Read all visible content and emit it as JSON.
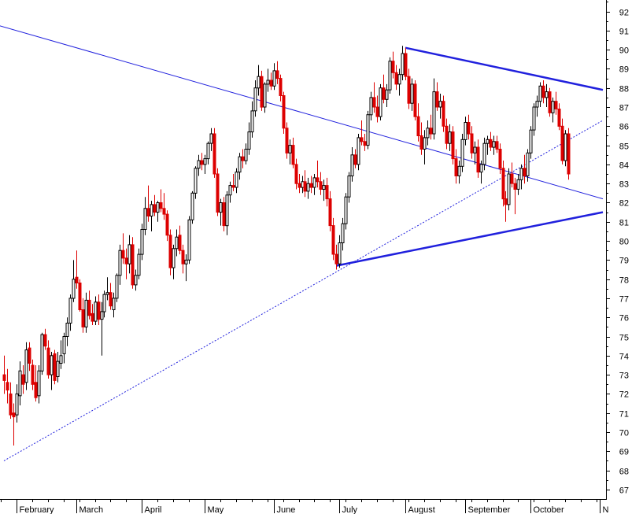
{
  "chart_data": {
    "type": "candlestick",
    "title": "",
    "xlabel": "",
    "ylabel": "",
    "ylim": [
      66.5,
      92.6
    ],
    "y_ticks": [
      67,
      68,
      69,
      70,
      71,
      72,
      73,
      74,
      75,
      76,
      77,
      78,
      79,
      80,
      81,
      82,
      83,
      84,
      85,
      86,
      87,
      88,
      89,
      90,
      91,
      92
    ],
    "y_axis_side": "right",
    "grid": false,
    "legend": "none",
    "x_months": [
      {
        "label": "February",
        "day": 5
      },
      {
        "label": "March",
        "day": 24
      },
      {
        "label": "April",
        "day": 45
      },
      {
        "label": "May",
        "day": 65
      },
      {
        "label": "June",
        "day": 87
      },
      {
        "label": "July",
        "day": 108
      },
      {
        "label": "August",
        "day": 129
      },
      {
        "label": "September",
        "day": 148
      },
      {
        "label": "October",
        "day": 169
      },
      {
        "label": "N",
        "day": 191
      }
    ],
    "x_range_days": [
      0,
      192
    ],
    "candles": [
      [
        1,
        73.0,
        74.0,
        72.0,
        72.7
      ],
      [
        2,
        72.6,
        73.3,
        71.5,
        72.2
      ],
      [
        3,
        72.0,
        72.6,
        70.7,
        70.9
      ],
      [
        4,
        71.0,
        71.5,
        69.3,
        70.8
      ],
      [
        5,
        70.9,
        72.5,
        70.5,
        72.0
      ],
      [
        6,
        71.9,
        73.7,
        71.4,
        73.2
      ],
      [
        7,
        73.0,
        73.5,
        72.0,
        72.5
      ],
      [
        8,
        72.6,
        74.7,
        72.2,
        74.3
      ],
      [
        9,
        74.4,
        74.7,
        73.2,
        73.6
      ],
      [
        10,
        73.5,
        73.8,
        72.2,
        72.5
      ],
      [
        11,
        72.6,
        73.5,
        71.6,
        71.8
      ],
      [
        12,
        71.9,
        73.5,
        71.5,
        73.2
      ],
      [
        13,
        73.2,
        75.2,
        73.0,
        75.1
      ],
      [
        14,
        75.1,
        75.4,
        74.3,
        74.5
      ],
      [
        15,
        74.4,
        74.8,
        72.8,
        73.0
      ],
      [
        16,
        73.0,
        74.2,
        72.2,
        74.0
      ],
      [
        17,
        74.1,
        74.3,
        72.5,
        72.7
      ],
      [
        18,
        72.9,
        74.2,
        72.6,
        73.7
      ],
      [
        19,
        73.6,
        74.8,
        73.3,
        74.0
      ],
      [
        20,
        74.1,
        75.2,
        73.6,
        75.0
      ],
      [
        21,
        75.0,
        76.0,
        74.5,
        75.7
      ],
      [
        22,
        75.7,
        77.2,
        75.3,
        77.0
      ],
      [
        23,
        77.0,
        79.0,
        76.8,
        78.0
      ],
      [
        24,
        78.1,
        79.5,
        77.5,
        77.8
      ],
      [
        25,
        77.8,
        78.0,
        76.3,
        76.4
      ],
      [
        26,
        76.4,
        77.0,
        75.2,
        75.5
      ],
      [
        27,
        75.5,
        77.3,
        75.2,
        76.9
      ],
      [
        28,
        76.9,
        77.4,
        75.9,
        76.1
      ],
      [
        29,
        76.2,
        76.7,
        75.6,
        75.8
      ],
      [
        30,
        75.8,
        77.1,
        75.6,
        76.8
      ],
      [
        31,
        76.8,
        77.2,
        75.6,
        75.9
      ],
      [
        32,
        75.9,
        76.8,
        74.0,
        76.3
      ],
      [
        33,
        76.3,
        77.4,
        76.0,
        77.2
      ],
      [
        34,
        77.2,
        78.1,
        76.9,
        77.3
      ],
      [
        35,
        77.3,
        77.8,
        76.4,
        76.6
      ],
      [
        36,
        76.4,
        77.3,
        76.0,
        77.0
      ],
      [
        37,
        77.0,
        78.3,
        76.8,
        78.2
      ],
      [
        38,
        78.2,
        79.8,
        77.7,
        79.5
      ],
      [
        39,
        79.5,
        80.4,
        78.8,
        79.1
      ],
      [
        40,
        79.1,
        79.6,
        78.0,
        78.8
      ],
      [
        41,
        78.8,
        80.3,
        78.3,
        79.8
      ],
      [
        42,
        79.8,
        80.2,
        77.5,
        77.7
      ],
      [
        43,
        77.7,
        78.5,
        77.4,
        78.2
      ],
      [
        44,
        78.2,
        79.6,
        78.0,
        79.3
      ],
      [
        45,
        79.3,
        80.9,
        79.0,
        80.6
      ],
      [
        46,
        80.6,
        82.3,
        80.3,
        81.7
      ],
      [
        47,
        81.7,
        82.9,
        81.0,
        81.3
      ],
      [
        48,
        81.3,
        82.1,
        80.5,
        81.9
      ],
      [
        49,
        81.9,
        82.4,
        81.3,
        81.5
      ],
      [
        50,
        81.5,
        82.1,
        81.0,
        82.0
      ],
      [
        51,
        82.0,
        82.7,
        81.5,
        81.7
      ],
      [
        52,
        81.7,
        82.5,
        81.1,
        81.4
      ],
      [
        53,
        81.4,
        81.6,
        80.0,
        80.3
      ],
      [
        54,
        80.3,
        80.6,
        78.2,
        78.6
      ],
      [
        55,
        78.6,
        79.8,
        78.0,
        79.6
      ],
      [
        56,
        79.6,
        80.6,
        79.2,
        80.2
      ],
      [
        57,
        80.3,
        80.8,
        79.3,
        79.5
      ],
      [
        58,
        79.5,
        79.8,
        78.3,
        78.8
      ],
      [
        59,
        78.8,
        79.3,
        77.9,
        79.0
      ],
      [
        60,
        79.0,
        81.3,
        78.8,
        81.1
      ],
      [
        61,
        81.1,
        82.6,
        80.9,
        82.5
      ],
      [
        62,
        82.5,
        83.9,
        82.2,
        83.8
      ],
      [
        63,
        83.8,
        84.5,
        83.4,
        84.2
      ],
      [
        64,
        84.2,
        84.6,
        83.7,
        84.0
      ],
      [
        65,
        84.0,
        84.5,
        83.5,
        84.3
      ],
      [
        66,
        84.3,
        85.2,
        84.0,
        85.1
      ],
      [
        67,
        85.1,
        85.9,
        84.7,
        85.6
      ],
      [
        68,
        85.6,
        85.9,
        83.3,
        83.5
      ],
      [
        69,
        83.5,
        83.8,
        81.3,
        81.5
      ],
      [
        70,
        81.5,
        82.2,
        80.8,
        82.0
      ],
      [
        71,
        82.0,
        82.3,
        80.5,
        80.8
      ],
      [
        72,
        80.8,
        82.6,
        80.3,
        82.4
      ],
      [
        73,
        82.4,
        83.1,
        82.0,
        82.9
      ],
      [
        74,
        82.9,
        83.5,
        82.6,
        82.8
      ],
      [
        75,
        82.8,
        83.8,
        82.5,
        83.6
      ],
      [
        76,
        83.6,
        84.6,
        83.2,
        84.4
      ],
      [
        77,
        84.4,
        84.8,
        83.8,
        84.2
      ],
      [
        78,
        84.2,
        85.1,
        84.0,
        84.8
      ],
      [
        79,
        84.8,
        86.2,
        84.5,
        85.7
      ],
      [
        80,
        85.7,
        87.3,
        85.4,
        86.8
      ],
      [
        81,
        86.8,
        88.4,
        86.5,
        88.0
      ],
      [
        82,
        88.0,
        89.2,
        87.6,
        88.6
      ],
      [
        83,
        88.6,
        88.9,
        86.8,
        87.0
      ],
      [
        84,
        87.0,
        88.3,
        86.7,
        88.2
      ],
      [
        85,
        88.2,
        89.0,
        87.8,
        88.4
      ],
      [
        86,
        88.4,
        88.8,
        87.9,
        88.1
      ],
      [
        87,
        88.1,
        89.3,
        87.9,
        88.9
      ],
      [
        88,
        88.9,
        89.4,
        88.2,
        88.5
      ],
      [
        89,
        88.5,
        88.7,
        87.3,
        87.6
      ],
      [
        90,
        87.6,
        87.8,
        85.6,
        85.9
      ],
      [
        91,
        85.9,
        86.2,
        84.3,
        84.6
      ],
      [
        92,
        84.6,
        85.3,
        84.0,
        85.0
      ],
      [
        93,
        85.0,
        85.4,
        83.8,
        84.0
      ],
      [
        94,
        84.0,
        84.3,
        82.7,
        83.0
      ],
      [
        95,
        83.0,
        83.5,
        82.5,
        82.8
      ],
      [
        96,
        82.8,
        83.4,
        82.5,
        83.1
      ],
      [
        97,
        83.1,
        83.7,
        82.3,
        82.6
      ],
      [
        98,
        82.6,
        83.3,
        82.2,
        83.0
      ],
      [
        99,
        83.0,
        83.4,
        82.5,
        82.8
      ],
      [
        100,
        82.8,
        83.5,
        82.4,
        83.3
      ],
      [
        101,
        83.3,
        84.2,
        82.8,
        83.1
      ],
      [
        102,
        83.1,
        83.6,
        82.4,
        82.7
      ],
      [
        103,
        82.7,
        83.2,
        82.1,
        82.9
      ],
      [
        104,
        82.9,
        83.3,
        81.8,
        82.2
      ],
      [
        105,
        82.2,
        82.6,
        80.5,
        80.8
      ],
      [
        106,
        80.8,
        81.2,
        79.0,
        79.3
      ],
      [
        107,
        79.3,
        79.8,
        78.5,
        78.8
      ],
      [
        108,
        78.8,
        80.3,
        78.6,
        79.9
      ],
      [
        109,
        79.9,
        81.2,
        79.5,
        80.9
      ],
      [
        110,
        80.9,
        82.5,
        80.6,
        82.3
      ],
      [
        111,
        82.3,
        83.6,
        82.0,
        83.4
      ],
      [
        112,
        83.4,
        84.9,
        83.1,
        84.5
      ],
      [
        113,
        84.5,
        84.8,
        83.8,
        84.0
      ],
      [
        114,
        84.0,
        85.6,
        83.7,
        85.4
      ],
      [
        115,
        85.4,
        86.3,
        85.0,
        85.2
      ],
      [
        116,
        85.2,
        85.6,
        84.7,
        85.0
      ],
      [
        117,
        85.0,
        86.8,
        84.8,
        86.6
      ],
      [
        118,
        86.6,
        87.8,
        86.3,
        87.5
      ],
      [
        119,
        87.5,
        88.3,
        86.7,
        87.0
      ],
      [
        120,
        87.0,
        87.6,
        86.2,
        86.5
      ],
      [
        121,
        86.5,
        88.2,
        86.3,
        88.0
      ],
      [
        122,
        88.0,
        88.7,
        87.2,
        87.4
      ],
      [
        123,
        87.4,
        88.2,
        87.0,
        87.9
      ],
      [
        124,
        87.9,
        89.6,
        87.7,
        89.4
      ],
      [
        125,
        89.4,
        89.9,
        88.5,
        88.8
      ],
      [
        126,
        88.8,
        89.2,
        87.9,
        88.2
      ],
      [
        127,
        88.2,
        89.0,
        87.6,
        88.7
      ],
      [
        128,
        88.7,
        90.2,
        88.4,
        89.8
      ],
      [
        129,
        89.8,
        90.1,
        88.4,
        88.6
      ],
      [
        130,
        88.6,
        89.0,
        86.9,
        87.2
      ],
      [
        131,
        87.2,
        88.5,
        86.8,
        88.2
      ],
      [
        132,
        88.2,
        88.4,
        86.3,
        86.5
      ],
      [
        133,
        86.5,
        87.2,
        85.2,
        85.5
      ],
      [
        134,
        85.5,
        86.2,
        84.5,
        84.8
      ],
      [
        135,
        84.8,
        85.8,
        84.0,
        85.4
      ],
      [
        136,
        85.4,
        86.3,
        85.0,
        85.9
      ],
      [
        137,
        85.9,
        86.6,
        85.3,
        85.6
      ],
      [
        138,
        85.6,
        88.5,
        85.3,
        87.8
      ],
      [
        139,
        87.8,
        88.3,
        86.8,
        87.0
      ],
      [
        140,
        87.0,
        87.7,
        86.4,
        87.3
      ],
      [
        141,
        87.3,
        87.6,
        85.7,
        86.0
      ],
      [
        142,
        86.0,
        86.4,
        84.8,
        85.1
      ],
      [
        143,
        85.1,
        86.1,
        84.7,
        85.7
      ],
      [
        144,
        85.7,
        86.0,
        84.0,
        84.3
      ],
      [
        145,
        84.3,
        84.8,
        83.0,
        83.4
      ],
      [
        146,
        83.4,
        84.2,
        83.0,
        83.9
      ],
      [
        147,
        83.9,
        85.6,
        83.6,
        85.3
      ],
      [
        148,
        85.3,
        86.5,
        85.0,
        86.2
      ],
      [
        149,
        86.2,
        86.6,
        85.3,
        85.6
      ],
      [
        150,
        85.6,
        86.0,
        84.3,
        84.6
      ],
      [
        151,
        84.6,
        85.2,
        84.0,
        84.9
      ],
      [
        152,
        84.9,
        85.3,
        83.3,
        83.6
      ],
      [
        153,
        83.6,
        84.2,
        83.0,
        84.0
      ],
      [
        154,
        84.0,
        85.4,
        83.7,
        85.1
      ],
      [
        155,
        85.1,
        85.5,
        84.5,
        85.3
      ],
      [
        156,
        85.3,
        85.7,
        84.7,
        84.9
      ],
      [
        157,
        84.9,
        85.5,
        84.5,
        85.2
      ],
      [
        158,
        85.2,
        85.5,
        84.6,
        84.8
      ],
      [
        159,
        84.8,
        85.1,
        83.5,
        83.8
      ],
      [
        160,
        83.8,
        84.2,
        81.8,
        82.2
      ],
      [
        161,
        82.2,
        82.6,
        81.0,
        81.9
      ],
      [
        162,
        81.9,
        83.8,
        81.6,
        83.5
      ],
      [
        163,
        83.5,
        84.1,
        82.8,
        83.0
      ],
      [
        164,
        83.0,
        83.3,
        81.4,
        82.7
      ],
      [
        165,
        82.7,
        83.5,
        82.4,
        83.2
      ],
      [
        166,
        83.2,
        84.0,
        82.7,
        83.8
      ],
      [
        167,
        83.8,
        84.5,
        83.0,
        83.4
      ],
      [
        168,
        83.4,
        84.8,
        83.1,
        84.6
      ],
      [
        169,
        84.6,
        86.0,
        84.3,
        85.8
      ],
      [
        170,
        85.8,
        87.2,
        85.5,
        87.0
      ],
      [
        171,
        87.0,
        87.6,
        86.5,
        87.3
      ],
      [
        172,
        87.3,
        88.3,
        87.0,
        88.1
      ],
      [
        173,
        88.1,
        88.4,
        87.2,
        87.5
      ],
      [
        174,
        87.5,
        88.2,
        87.0,
        87.8
      ],
      [
        175,
        87.8,
        88.0,
        86.5,
        86.7
      ],
      [
        176,
        86.7,
        87.5,
        86.2,
        87.3
      ],
      [
        177,
        87.3,
        87.8,
        86.6,
        86.9
      ],
      [
        178,
        86.9,
        87.2,
        85.8,
        86.0
      ],
      [
        179,
        86.0,
        86.4,
        84.0,
        84.2
      ],
      [
        180,
        84.2,
        85.8,
        83.9,
        85.6
      ],
      [
        181,
        85.6,
        85.9,
        83.2,
        83.5
      ]
    ],
    "colors": {
      "up": "#000000",
      "down": "#dd0000",
      "trendline": "#2020dd",
      "axis": "#000000",
      "background": "#ffffff"
    },
    "trendlines": [
      {
        "style": "solid",
        "width": 1,
        "from": [
          -29,
          92.6
        ],
        "to": [
          192,
          82.2
        ]
      },
      {
        "style": "dotted",
        "width": 1,
        "from": [
          1,
          68.5
        ],
        "to": [
          192,
          86.3
        ]
      },
      {
        "style": "solid",
        "width": 2.5,
        "from": [
          129,
          90.1
        ],
        "to": [
          192,
          87.9
        ]
      },
      {
        "style": "solid",
        "width": 2.5,
        "from": [
          107,
          78.7
        ],
        "to": [
          192,
          81.5
        ]
      }
    ]
  }
}
